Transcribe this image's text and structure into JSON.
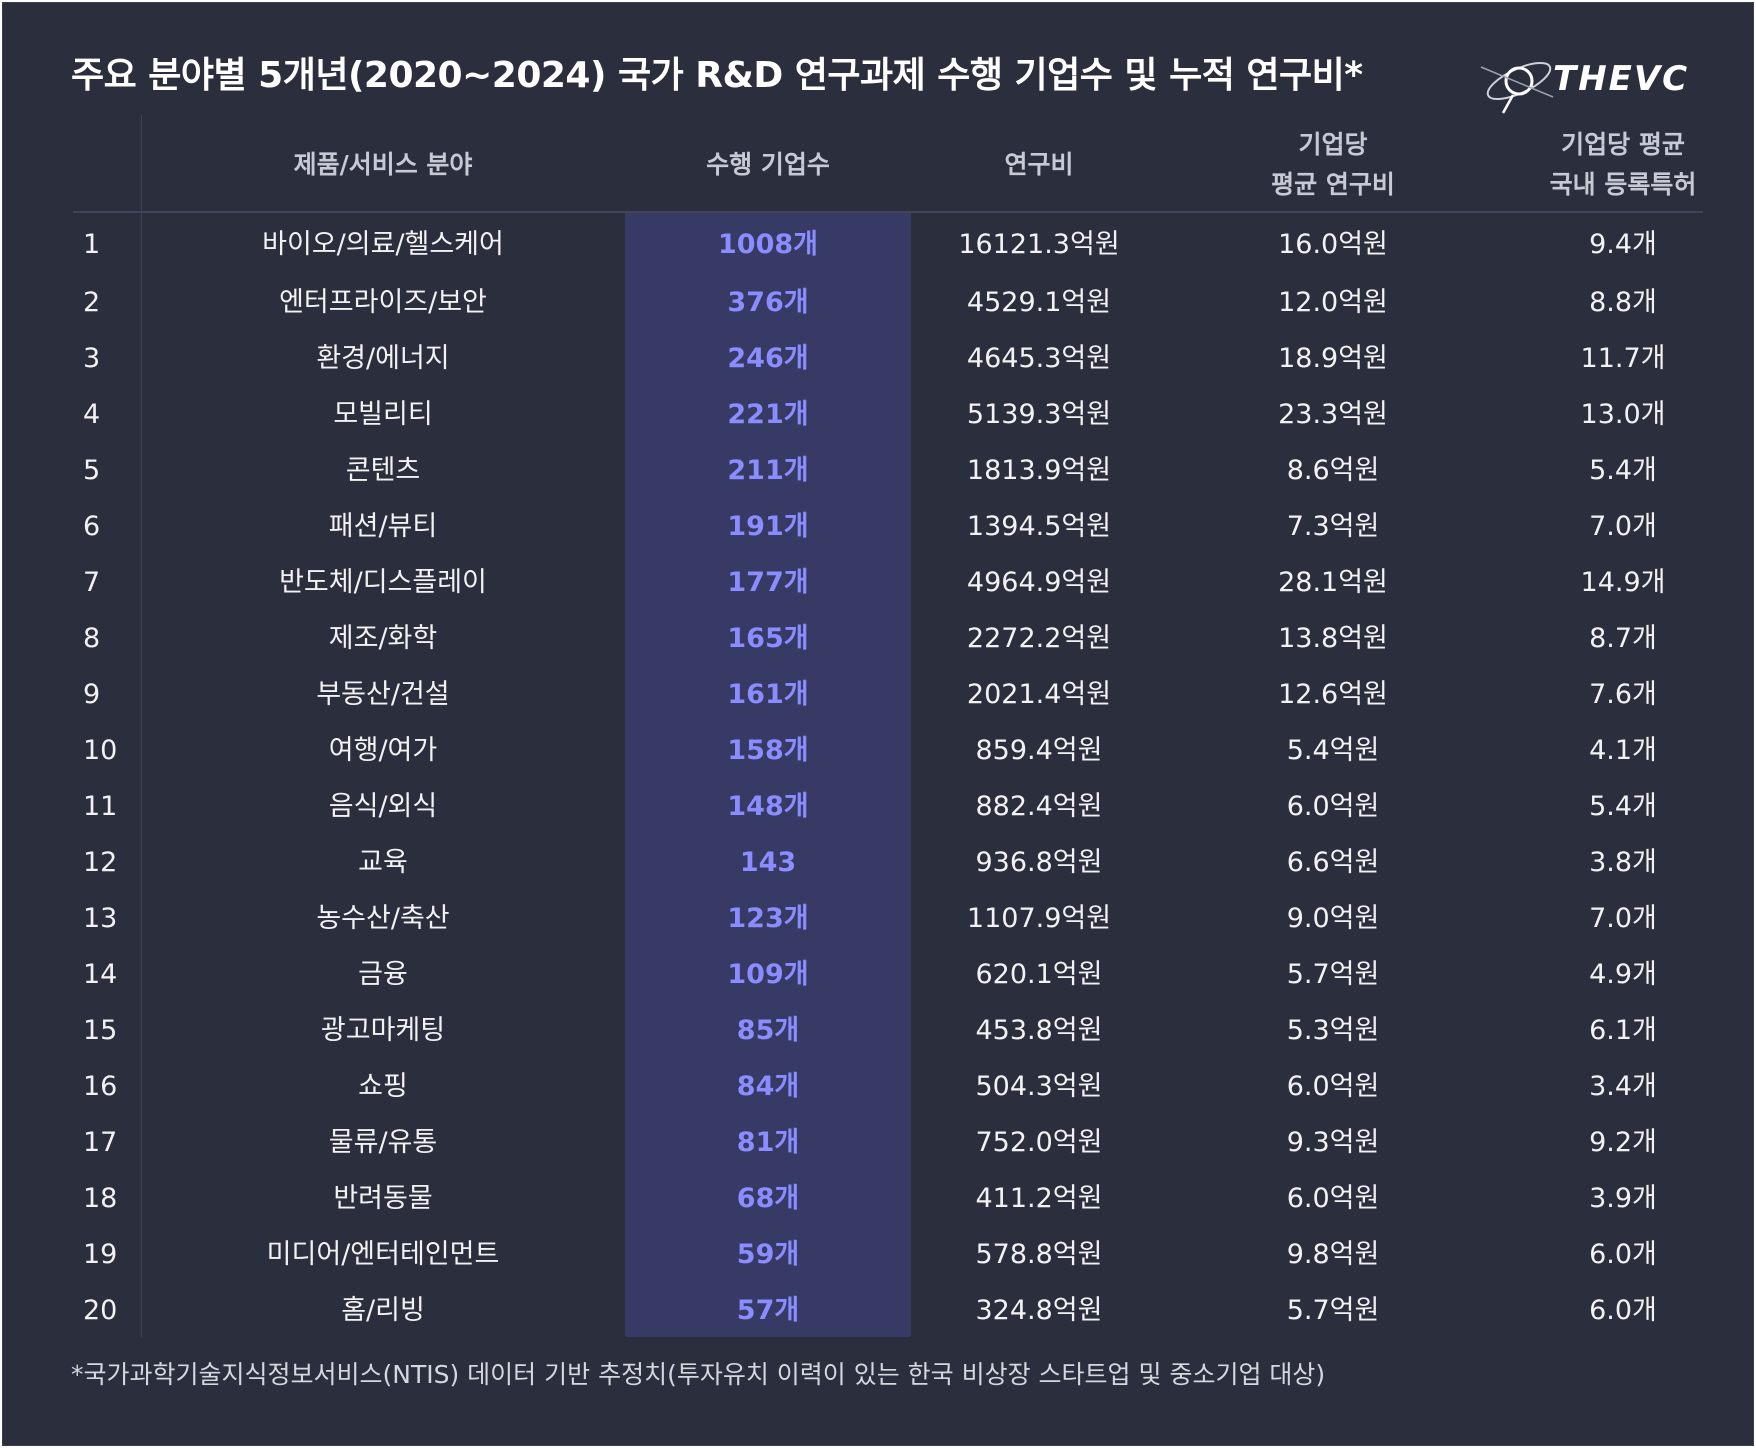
{
  "title": "주요 분야별 5개년(2020~2024) 국가 R&D 연구과제 수행 기업수 및 누적 연구비*",
  "brand": {
    "name": "THEVC",
    "logo_icon": "orbit-logo-icon"
  },
  "colors": {
    "background": "#2b2e3c",
    "highlight_column": "#363a64",
    "count_text": "#8b8cff",
    "text": "#f2f2f4"
  },
  "chart_data": {
    "type": "table",
    "title": "주요 분야별 5개년(2020~2024) 국가 R&D 연구과제 수행 기업수 및 누적 연구비*",
    "columns": [
      "",
      "제품/서비스 분야",
      "수행 기업수",
      "연구비",
      "기업당 평균 연구비",
      "기업당 평균 국내 등록특허"
    ],
    "header_lines": {
      "field": "제품/서비스 분야",
      "count": "수행 기업수",
      "budget": "연구비",
      "avg_budget_1": "기업당",
      "avg_budget_2": "평균 연구비",
      "patent_1": "기업당 평균",
      "patent_2": "국내 등록특허"
    },
    "rows": [
      {
        "rank": "1",
        "field": "바이오/의료/헬스케어",
        "count": "1008개",
        "budget": "16121.3억원",
        "avg_budget": "16.0억원",
        "patents": "9.4개"
      },
      {
        "rank": "2",
        "field": "엔터프라이즈/보안",
        "count": "376개",
        "budget": "4529.1억원",
        "avg_budget": "12.0억원",
        "patents": "8.8개"
      },
      {
        "rank": "3",
        "field": "환경/에너지",
        "count": "246개",
        "budget": "4645.3억원",
        "avg_budget": "18.9억원",
        "patents": "11.7개"
      },
      {
        "rank": "4",
        "field": "모빌리티",
        "count": "221개",
        "budget": "5139.3억원",
        "avg_budget": "23.3억원",
        "patents": "13.0개"
      },
      {
        "rank": "5",
        "field": "콘텐츠",
        "count": "211개",
        "budget": "1813.9억원",
        "avg_budget": "8.6억원",
        "patents": "5.4개"
      },
      {
        "rank": "6",
        "field": "패션/뷰티",
        "count": "191개",
        "budget": "1394.5억원",
        "avg_budget": "7.3억원",
        "patents": "7.0개"
      },
      {
        "rank": "7",
        "field": "반도체/디스플레이",
        "count": "177개",
        "budget": "4964.9억원",
        "avg_budget": "28.1억원",
        "patents": "14.9개"
      },
      {
        "rank": "8",
        "field": "제조/화학",
        "count": "165개",
        "budget": "2272.2억원",
        "avg_budget": "13.8억원",
        "patents": "8.7개"
      },
      {
        "rank": "9",
        "field": "부동산/건설",
        "count": "161개",
        "budget": "2021.4억원",
        "avg_budget": "12.6억원",
        "patents": "7.6개"
      },
      {
        "rank": "10",
        "field": "여행/여가",
        "count": "158개",
        "budget": "859.4억원",
        "avg_budget": "5.4억원",
        "patents": "4.1개"
      },
      {
        "rank": "11",
        "field": "음식/외식",
        "count": "148개",
        "budget": "882.4억원",
        "avg_budget": "6.0억원",
        "patents": "5.4개"
      },
      {
        "rank": "12",
        "field": "교육",
        "count": "143",
        "budget": "936.8억원",
        "avg_budget": "6.6억원",
        "patents": "3.8개"
      },
      {
        "rank": "13",
        "field": "농수산/축산",
        "count": "123개",
        "budget": "1107.9억원",
        "avg_budget": "9.0억원",
        "patents": "7.0개"
      },
      {
        "rank": "14",
        "field": "금융",
        "count": "109개",
        "budget": "620.1억원",
        "avg_budget": "5.7억원",
        "patents": "4.9개"
      },
      {
        "rank": "15",
        "field": "광고마케팅",
        "count": "85개",
        "budget": "453.8억원",
        "avg_budget": "5.3억원",
        "patents": "6.1개"
      },
      {
        "rank": "16",
        "field": "쇼핑",
        "count": "84개",
        "budget": "504.3억원",
        "avg_budget": "6.0억원",
        "patents": "3.4개"
      },
      {
        "rank": "17",
        "field": "물류/유통",
        "count": "81개",
        "budget": "752.0억원",
        "avg_budget": "9.3억원",
        "patents": "9.2개"
      },
      {
        "rank": "18",
        "field": "반려동물",
        "count": "68개",
        "budget": "411.2억원",
        "avg_budget": "6.0억원",
        "patents": "3.9개"
      },
      {
        "rank": "19",
        "field": "미디어/엔터테인먼트",
        "count": "59개",
        "budget": "578.8억원",
        "avg_budget": "9.8억원",
        "patents": "6.0개"
      },
      {
        "rank": "20",
        "field": "홈/리빙",
        "count": "57개",
        "budget": "324.8억원",
        "avg_budget": "5.7억원",
        "patents": "6.0개"
      }
    ]
  },
  "footnote": "*국가과학기술지식정보서비스(NTIS) 데이터 기반 추정치(투자유치 이력이 있는 한국 비상장 스타트업 및 중소기업 대상)"
}
